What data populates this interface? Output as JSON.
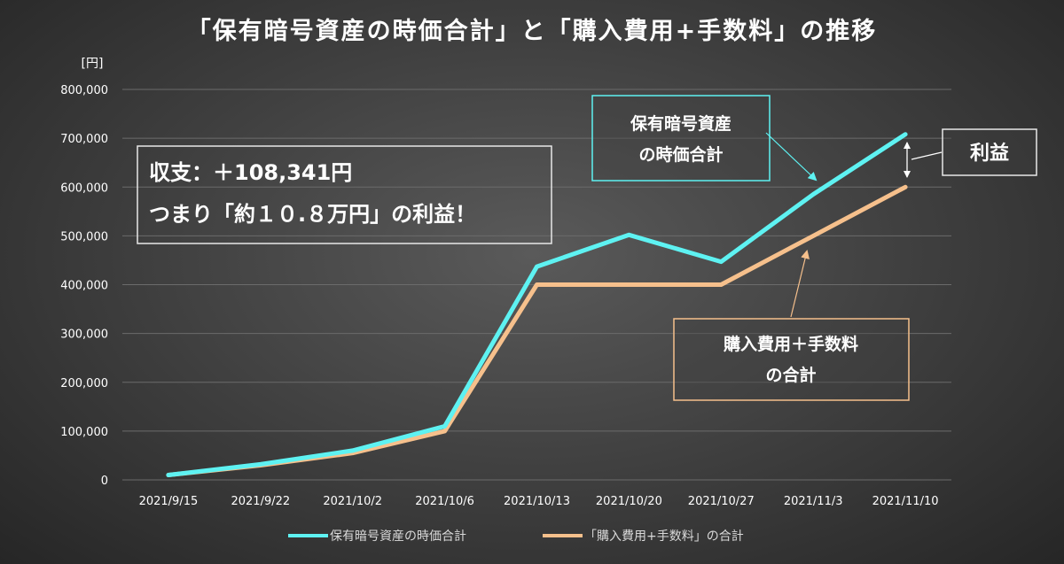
{
  "chart_data": {
    "type": "line",
    "title": "「保有暗号資産の時価合計」と「購入費用+手数料」の推移",
    "ylabel": "[円]",
    "categories": [
      "2021/9/15",
      "2021/9/22",
      "2021/10/2",
      "2021/10/6",
      "2021/10/13",
      "2021/10/20",
      "2021/10/27",
      "2021/11/3",
      "2021/11/10"
    ],
    "yticks": [
      "0",
      "100,000",
      "200,000",
      "300,000",
      "400,000",
      "500,000",
      "600,000",
      "700,000",
      "800,000"
    ],
    "ylim": [
      0,
      800000
    ],
    "grid": true,
    "legend_position": "bottom",
    "series": [
      {
        "name": "保有暗号資産の時価合計",
        "color": "#5ef2f2",
        "values": [
          10000,
          32000,
          60000,
          110000,
          437000,
          502000,
          447000,
          585000,
          708000
        ]
      },
      {
        "name": "「購入費用+手数料」の合計",
        "color": "#f6c08c",
        "values": [
          10000,
          30000,
          55000,
          100000,
          400000,
          400000,
          400000,
          500000,
          600000
        ]
      }
    ],
    "annotations": {
      "summary_line1": "収支：＋108,341円",
      "summary_line2": "つまり「約１０.８万円」の利益！",
      "market_box_line1": "保有暗号資産",
      "market_box_line2": "の時価合計",
      "cost_box_line1": "購入費用＋手数料",
      "cost_box_line2": "の合計",
      "profit_label": "利益"
    }
  }
}
